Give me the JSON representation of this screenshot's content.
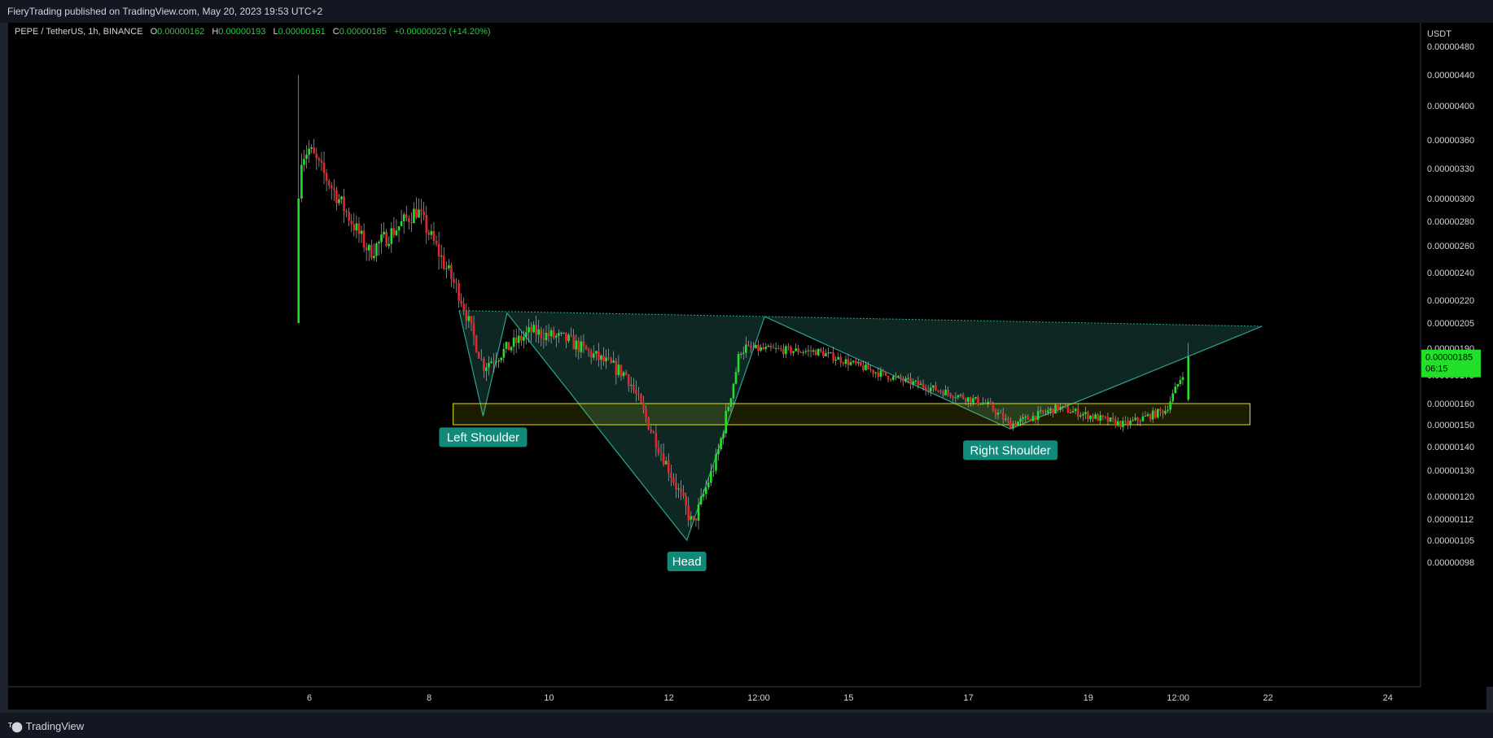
{
  "header": {
    "published_text": "FieryTrading published on TradingView.com, May 20, 2023 19:53 UTC+2"
  },
  "legend": {
    "symbol": "PEPE / TetherUS, 1h, BINANCE",
    "open_label": "O",
    "open": "0.00000162",
    "high_label": "H",
    "high": "0.00000193",
    "low_label": "L",
    "low": "0.00000161",
    "close_label": "C",
    "close": "0.00000185",
    "change": "+0.00000023 (+14.20%)"
  },
  "footer": {
    "brand": "TradingView"
  },
  "colors": {
    "up": "#22e02a",
    "down": "#e3262c",
    "pattern_fill": "#0f2b27",
    "pattern_line": "#2aa28f",
    "zone": "#e4e400",
    "label_bg": "#128a7a",
    "price_tag": "#22e02a",
    "background": "#000000"
  },
  "chart_data": {
    "type": "candlestick",
    "timeframe": "1h",
    "y_axis_unit": "USDT",
    "y_ticks": [
      "0.00000480",
      "0.00000440",
      "0.00000400",
      "0.00000360",
      "0.00000330",
      "0.00000300",
      "0.00000280",
      "0.00000260",
      "0.00000240",
      "0.00000220",
      "0.00000205",
      "0.00000190",
      "0.00000175",
      "0.00000160",
      "0.00000150",
      "0.00000140",
      "0.00000130",
      "0.00000120",
      "0.00000112",
      "0.00000105",
      "0.00000098"
    ],
    "x_ticks": [
      "6",
      "8",
      "10",
      "12",
      "12:00",
      "15",
      "17",
      "19",
      "12:00",
      "22",
      "24"
    ],
    "last_price": "0.00000185",
    "countdown": "06:15",
    "approx_close_path": [
      {
        "date": "May 5",
        "close": 3e-06
      },
      {
        "date": "May 6",
        "close": 3.5e-06
      },
      {
        "date": "May 7",
        "close": 2.55e-06
      },
      {
        "date": "May 7.8",
        "close": 2.9e-06
      },
      {
        "date": "May 8.5",
        "close": 2.25e-06
      },
      {
        "date": "May 8.9",
        "close": 1.8e-06
      },
      {
        "date": "May 9.7",
        "close": 2e-06
      },
      {
        "date": "May 10.3",
        "close": 1.95e-06
      },
      {
        "date": "May 11.3",
        "close": 1.75e-06
      },
      {
        "date": "May 12.2",
        "close": 1.2e-06
      },
      {
        "date": "May 12.4",
        "close": 1.1e-06
      },
      {
        "date": "May 12.8",
        "close": 1.35e-06
      },
      {
        "date": "May 13.2",
        "close": 1.9e-06
      },
      {
        "date": "May 14.5",
        "close": 1.88e-06
      },
      {
        "date": "May 15.6",
        "close": 1.75e-06
      },
      {
        "date": "May 17.3",
        "close": 1.6e-06
      },
      {
        "date": "May 17.7",
        "close": 1.5e-06
      },
      {
        "date": "May 18.5",
        "close": 1.58e-06
      },
      {
        "date": "May 19.6",
        "close": 1.5e-06
      },
      {
        "date": "May 20.3",
        "close": 1.57e-06
      },
      {
        "date": "May 20.7",
        "close": 1.85e-06
      }
    ],
    "neckline": {
      "from": {
        "date": "May 8.6",
        "price": 2.13e-06
      },
      "to": {
        "date": "May 21.9",
        "price": 2.03e-06
      }
    },
    "support_zone": {
      "from_date": "May 8.4",
      "to_date": "May 21.7",
      "low": 1.5e-06,
      "high": 1.6e-06
    },
    "pattern_points": {
      "left_shoulder": {
        "date": "May 8.9",
        "price": 1.54e-06
      },
      "head": {
        "date": "May 12.3",
        "price": 1.05e-06
      },
      "right_shoulder": {
        "date": "May 17.7",
        "price": 1.48e-06
      }
    },
    "annotations": [
      {
        "text": "Left Shoulder",
        "date": "May 8.9",
        "price": 1.54e-06
      },
      {
        "text": "Head",
        "date": "May 12.3",
        "price": 1.05e-06
      },
      {
        "text": "Right Shoulder",
        "date": "May 17.7",
        "price": 1.48e-06
      }
    ]
  }
}
